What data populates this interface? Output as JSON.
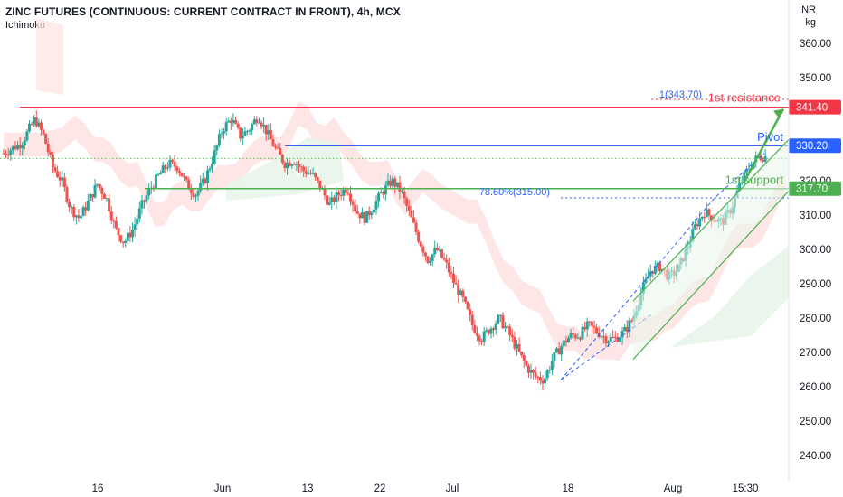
{
  "header": {
    "title": "ZINC FUTURES (CONTINUOUS: CURRENT CONTRACT IN FRONT), 4h, MCX",
    "indicator": "Ichimoku",
    "unit_currency": "INR",
    "unit_qty": "kg"
  },
  "colors": {
    "up": "#26a69a",
    "down": "#ef5350",
    "resistance": "#f23645",
    "pivot": "#2962ff",
    "support": "#4caf50",
    "cloud_bear": "#fde2e1",
    "cloud_bull": "#e8f5e9",
    "fib": "#2962ff"
  },
  "chart_data": {
    "type": "candlestick",
    "title": "ZINC FUTURES (CONTINUOUS: CURRENT CONTRACT IN FRONT), 4h, MCX",
    "ylim": [
      233,
      366
    ],
    "y_ticks": [
      "360.00",
      "350.00",
      "330.00",
      "320.00",
      "310.00",
      "300.00",
      "290.00",
      "280.00",
      "270.00",
      "260.00",
      "250.00",
      "240.00"
    ],
    "y_tick_values": [
      360,
      350,
      330,
      320,
      310,
      300,
      290,
      280,
      270,
      260,
      250,
      240
    ],
    "x_ticks": [
      "16",
      "Jun",
      "13",
      "22",
      "Jul",
      "18",
      "Aug",
      "15:30"
    ],
    "levels": [
      {
        "name": "1st resistance",
        "value": 341.4,
        "label": "341.40"
      },
      {
        "name": "Pivot",
        "value": 330.2,
        "label": "330.20"
      },
      {
        "name": "1st support",
        "value": 317.7,
        "label": "317.70"
      }
    ],
    "fib_labels": [
      {
        "text": "1(343.70)",
        "value": 343.7
      },
      {
        "text": "78.60%(315.00)",
        "value": 315.0
      }
    ],
    "current_price_dotted": 326.5,
    "trend_path": [
      [
        0,
        328
      ],
      [
        8,
        331
      ],
      [
        14,
        338
      ],
      [
        18,
        333
      ],
      [
        22,
        324
      ],
      [
        26,
        320
      ],
      [
        30,
        312
      ],
      [
        34,
        309
      ],
      [
        38,
        314
      ],
      [
        42,
        319
      ],
      [
        46,
        315
      ],
      [
        50,
        306
      ],
      [
        54,
        302
      ],
      [
        58,
        306
      ],
      [
        62,
        313
      ],
      [
        66,
        318
      ],
      [
        70,
        322
      ],
      [
        74,
        325
      ],
      [
        78,
        324
      ],
      [
        82,
        319
      ],
      [
        86,
        316
      ],
      [
        90,
        320
      ],
      [
        94,
        327
      ],
      [
        98,
        335
      ],
      [
        102,
        338
      ],
      [
        106,
        333
      ],
      [
        110,
        335
      ],
      [
        114,
        339
      ],
      [
        118,
        334
      ],
      [
        122,
        329
      ],
      [
        126,
        325
      ],
      [
        130,
        326
      ],
      [
        134,
        323
      ],
      [
        138,
        322
      ],
      [
        142,
        318
      ],
      [
        146,
        313
      ],
      [
        150,
        316
      ],
      [
        154,
        318
      ],
      [
        158,
        311
      ],
      [
        162,
        309
      ],
      [
        166,
        313
      ],
      [
        170,
        317
      ],
      [
        174,
        320
      ],
      [
        178,
        317
      ],
      [
        182,
        310
      ],
      [
        186,
        303
      ],
      [
        190,
        297
      ],
      [
        194,
        300
      ],
      [
        198,
        296
      ],
      [
        202,
        290
      ],
      [
        206,
        285
      ],
      [
        210,
        278
      ],
      [
        214,
        274
      ],
      [
        218,
        277
      ],
      [
        222,
        280
      ],
      [
        226,
        276
      ],
      [
        230,
        271
      ],
      [
        234,
        266
      ],
      [
        238,
        263
      ],
      [
        242,
        262
      ],
      [
        246,
        268
      ],
      [
        250,
        272
      ],
      [
        254,
        275
      ],
      [
        258,
        275
      ],
      [
        262,
        278
      ],
      [
        266,
        276
      ],
      [
        270,
        274
      ],
      [
        274,
        274
      ],
      [
        278,
        276
      ],
      [
        282,
        280
      ],
      [
        286,
        288
      ],
      [
        290,
        294
      ],
      [
        294,
        295
      ],
      [
        298,
        292
      ],
      [
        302,
        294
      ],
      [
        306,
        300
      ],
      [
        310,
        307
      ],
      [
        314,
        311
      ],
      [
        318,
        309
      ],
      [
        322,
        308
      ],
      [
        326,
        312
      ],
      [
        330,
        319
      ],
      [
        334,
        324
      ],
      [
        338,
        327
      ],
      [
        342,
        327
      ]
    ],
    "channel": {
      "lower": [
        [
          0,
          268
        ],
        [
          1,
          317
        ]
      ],
      "upper": [
        [
          0,
          285
        ],
        [
          1,
          332
        ]
      ]
    },
    "arrow": {
      "from_value": 317.7,
      "to_value": 341.4
    }
  }
}
